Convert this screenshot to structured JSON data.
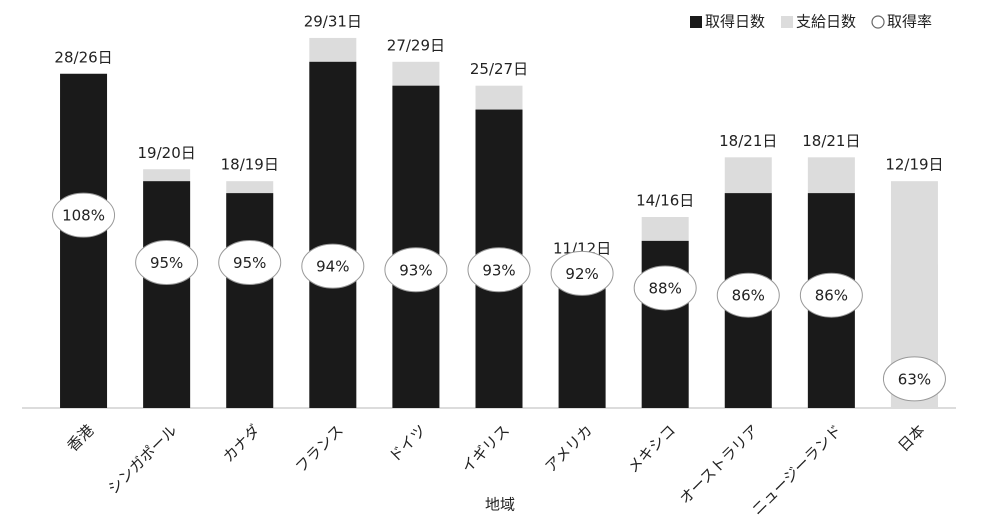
{
  "chart_data": {
    "type": "bar",
    "x_label": "地域",
    "categories": [
      "香港",
      "シンガポール",
      "カナダ",
      "フランス",
      "ドイツ",
      "イギリス",
      "アメリカ",
      "メキシコ",
      "オーストラリア",
      "ニュージーランド",
      "日本"
    ],
    "series": [
      {
        "name": "取得日数",
        "color": "#1a1a1a",
        "colors": [
          "#1a1a1a",
          "#1a1a1a",
          "#1a1a1a",
          "#1a1a1a",
          "#1a1a1a",
          "#1a1a1a",
          "#1a1a1a",
          "#1a1a1a",
          "#1a1a1a",
          "#1a1a1a",
          "#dcdcdc"
        ],
        "values": [
          28,
          19,
          18,
          29,
          27,
          25,
          11,
          14,
          18,
          18,
          12
        ]
      },
      {
        "name": "支給日数",
        "color": "#dcdcdc",
        "values": [
          26,
          20,
          19,
          31,
          29,
          27,
          12,
          16,
          21,
          21,
          19
        ]
      },
      {
        "name": "取得率",
        "axis": "y2",
        "color": "#ffffff",
        "values": [
          108,
          95,
          95,
          94,
          93,
          93,
          92,
          88,
          86,
          86,
          63
        ],
        "value_labels": [
          "108%",
          "95%",
          "95%",
          "94%",
          "93%",
          "93%",
          "92%",
          "88%",
          "86%",
          "86%",
          "63%"
        ]
      }
    ],
    "bar_labels": [
      "28/26日",
      "19/20日",
      "18/19日",
      "29/31日",
      "27/29日",
      "25/27日",
      "11/12日",
      "14/16日",
      "18/21日",
      "18/21日",
      "12/19日"
    ],
    "ylim": [
      0,
      32
    ],
    "y2lim": [
      55,
      160
    ],
    "legend": "top-right"
  }
}
